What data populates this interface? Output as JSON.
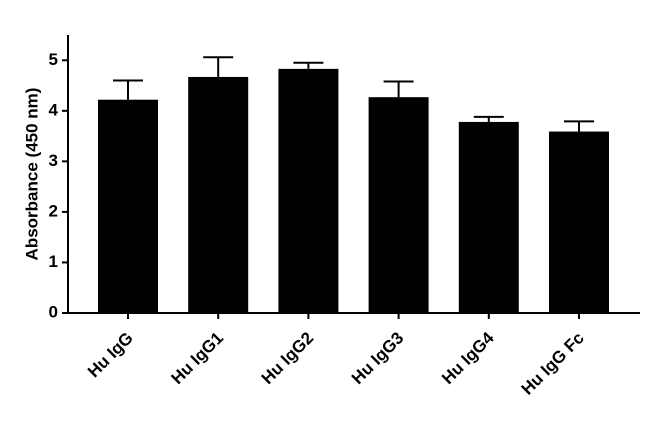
{
  "chart_data": {
    "type": "bar",
    "y_label": "Absorbance (450 nm)",
    "categories": [
      "Hu IgG",
      "Hu IgG1",
      "Hu IgG2",
      "Hu IgG3",
      "Hu IgG4",
      "Hu IgG Fc"
    ],
    "values": [
      4.22,
      4.67,
      4.83,
      4.27,
      3.78,
      3.59
    ],
    "errors": [
      0.38,
      0.39,
      0.12,
      0.31,
      0.1,
      0.2
    ],
    "color": "#000000",
    "ylim": [
      0,
      5.5
    ],
    "yticks": [
      0,
      1,
      2,
      3,
      4,
      5
    ]
  }
}
